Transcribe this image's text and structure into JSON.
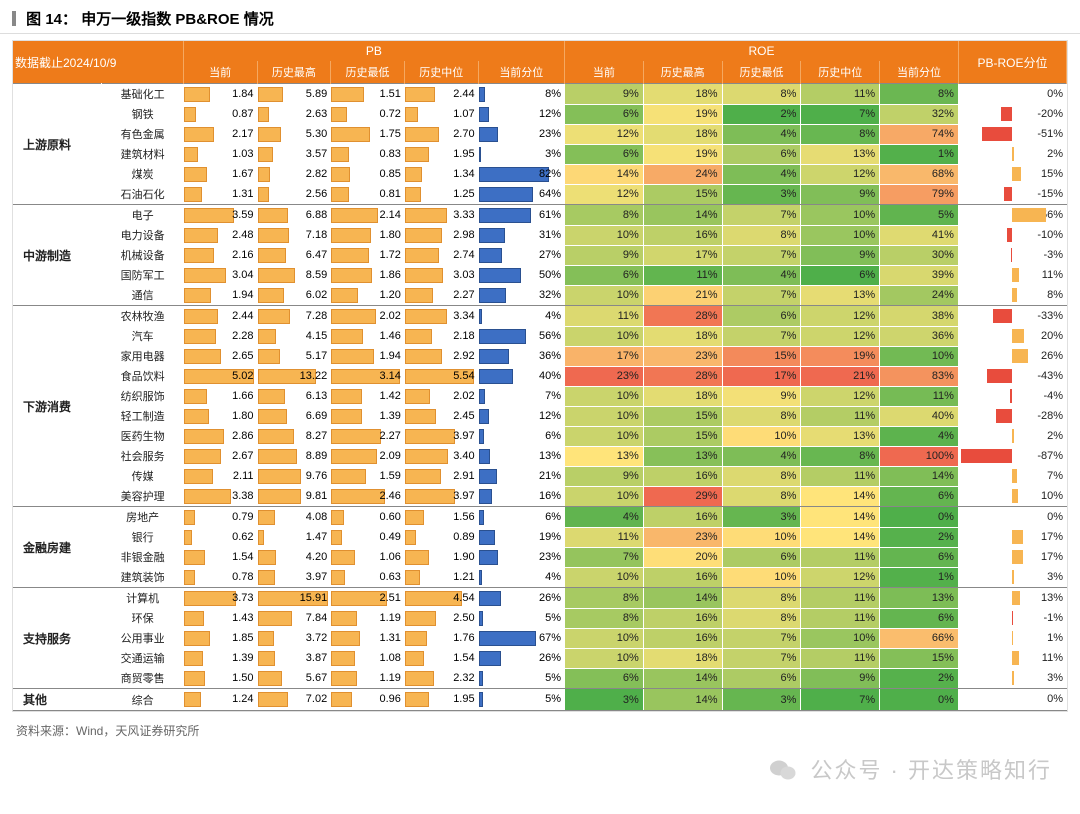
{
  "title_prefix": "图 14：",
  "title_main": "申万一级指数 PB&ROE 情况",
  "data_asof": "数据截止2024/10/9",
  "source": "资料来源：Wind，天风证券研究所",
  "watermark": "公众号 · 开达策略知行",
  "headers": {
    "pb_group": "PB",
    "roe_group": "ROE",
    "pbroe": "PB-ROE分位",
    "cols_pb": [
      "当前",
      "历史最高",
      "历史最低",
      "历史中位",
      "当前分位"
    ],
    "cols_roe": [
      "当前",
      "历史最高",
      "历史最低",
      "历史中位",
      "当前分位"
    ]
  },
  "colors": {
    "header_bg": "#ee7b1a",
    "orange_bar": "#f7b552",
    "blue_bar": "#3d6fc4",
    "neg_bar": "#e84c3d",
    "pos_bar": "#f7b552"
  },
  "scales": {
    "pb_current_max": 5.2,
    "pb_high_max": 16.5,
    "pb_low_max": 3.3,
    "pb_median_max": 5.8,
    "pb_pct_max": 100,
    "roe_current_max": 25,
    "roe_high_max": 30,
    "roe_low_max": 18,
    "roe_median_max": 22,
    "roe_pct_max": 100,
    "pbroe_abs_max": 90
  },
  "heat": {
    "roe_current": {
      "min": 3,
      "max": 23
    },
    "roe_high": {
      "min": 10,
      "max": 29
    },
    "roe_low": {
      "min": 2,
      "max": 17
    },
    "roe_median": {
      "min": 7,
      "max": 21
    },
    "roe_pct": {
      "min": 0,
      "max": 100
    }
  },
  "groups": [
    {
      "name": "上游原料",
      "rows": [
        {
          "ind": "基础化工",
          "pb": [
            1.84,
            5.89,
            1.51,
            2.44,
            8
          ],
          "roe": [
            9,
            18,
            8,
            11,
            8
          ],
          "pbroe": 0
        },
        {
          "ind": "钢铁",
          "pb": [
            0.87,
            2.63,
            0.72,
            1.07,
            12
          ],
          "roe": [
            6,
            19,
            2,
            7,
            32
          ],
          "pbroe": -20
        },
        {
          "ind": "有色金属",
          "pb": [
            2.17,
            5.3,
            1.75,
            2.7,
            23
          ],
          "roe": [
            12,
            18,
            4,
            8,
            74
          ],
          "pbroe": -51
        },
        {
          "ind": "建筑材料",
          "pb": [
            1.03,
            3.57,
            0.83,
            1.95,
            3
          ],
          "roe": [
            6,
            19,
            6,
            13,
            1
          ],
          "pbroe": 2
        },
        {
          "ind": "煤炭",
          "pb": [
            1.67,
            2.82,
            0.85,
            1.34,
            82
          ],
          "roe": [
            14,
            24,
            4,
            12,
            68
          ],
          "pbroe": 15
        },
        {
          "ind": "石油石化",
          "pb": [
            1.31,
            2.56,
            0.81,
            1.25,
            64
          ],
          "roe": [
            12,
            15,
            3,
            9,
            79
          ],
          "pbroe": -15
        }
      ]
    },
    {
      "name": "中游制造",
      "rows": [
        {
          "ind": "电子",
          "pb": [
            3.59,
            6.88,
            2.14,
            3.33,
            61
          ],
          "roe": [
            8,
            14,
            7,
            10,
            5
          ],
          "pbroe": 56
        },
        {
          "ind": "电力设备",
          "pb": [
            2.48,
            7.18,
            1.8,
            2.98,
            31
          ],
          "roe": [
            10,
            16,
            8,
            10,
            41
          ],
          "pbroe": -10
        },
        {
          "ind": "机械设备",
          "pb": [
            2.16,
            6.47,
            1.72,
            2.74,
            27
          ],
          "roe": [
            9,
            17,
            7,
            9,
            30
          ],
          "pbroe": -3
        },
        {
          "ind": "国防军工",
          "pb": [
            3.04,
            8.59,
            1.86,
            3.03,
            50
          ],
          "roe": [
            6,
            11,
            4,
            6,
            39
          ],
          "pbroe": 11
        },
        {
          "ind": "通信",
          "pb": [
            1.94,
            6.02,
            1.2,
            2.27,
            32
          ],
          "roe": [
            10,
            21,
            7,
            13,
            24
          ],
          "pbroe": 8
        }
      ]
    },
    {
      "name": "下游消费",
      "rows": [
        {
          "ind": "农林牧渔",
          "pb": [
            2.44,
            7.28,
            2.02,
            3.34,
            4
          ],
          "roe": [
            11,
            28,
            6,
            12,
            38
          ],
          "pbroe": -33
        },
        {
          "ind": "汽车",
          "pb": [
            2.28,
            4.15,
            1.46,
            2.18,
            56
          ],
          "roe": [
            10,
            18,
            7,
            12,
            36
          ],
          "pbroe": 20
        },
        {
          "ind": "家用电器",
          "pb": [
            2.65,
            5.17,
            1.94,
            2.92,
            36
          ],
          "roe": [
            17,
            23,
            15,
            19,
            10
          ],
          "pbroe": 26
        },
        {
          "ind": "食品饮料",
          "pb": [
            5.02,
            13.22,
            3.14,
            5.54,
            40
          ],
          "roe": [
            23,
            28,
            17,
            21,
            83
          ],
          "pbroe": -43
        },
        {
          "ind": "纺织服饰",
          "pb": [
            1.66,
            6.13,
            1.42,
            2.02,
            7
          ],
          "roe": [
            10,
            18,
            9,
            12,
            11
          ],
          "pbroe": -4
        },
        {
          "ind": "轻工制造",
          "pb": [
            1.8,
            6.69,
            1.39,
            2.45,
            12
          ],
          "roe": [
            10,
            15,
            8,
            11,
            40
          ],
          "pbroe": -28
        },
        {
          "ind": "医药生物",
          "pb": [
            2.86,
            8.27,
            2.27,
            3.97,
            6
          ],
          "roe": [
            10,
            15,
            10,
            13,
            4
          ],
          "pbroe": 2
        },
        {
          "ind": "社会服务",
          "pb": [
            2.67,
            8.89,
            2.09,
            3.4,
            13
          ],
          "roe": [
            13,
            13,
            4,
            8,
            100
          ],
          "pbroe": -87
        },
        {
          "ind": "传媒",
          "pb": [
            2.11,
            9.76,
            1.59,
            2.91,
            21
          ],
          "roe": [
            9,
            16,
            8,
            11,
            14
          ],
          "pbroe": 7
        },
        {
          "ind": "美容护理",
          "pb": [
            3.38,
            9.81,
            2.46,
            3.97,
            16
          ],
          "roe": [
            10,
            29,
            8,
            14,
            6
          ],
          "pbroe": 10
        }
      ]
    },
    {
      "name": "金融房建",
      "rows": [
        {
          "ind": "房地产",
          "pb": [
            0.79,
            4.08,
            0.6,
            1.56,
            6
          ],
          "roe": [
            4,
            16,
            3,
            14,
            0
          ],
          "pbroe": 0
        },
        {
          "ind": "银行",
          "pb": [
            0.62,
            1.47,
            0.49,
            0.89,
            19
          ],
          "roe": [
            11,
            23,
            10,
            14,
            2
          ],
          "pbroe": 17
        },
        {
          "ind": "非银金融",
          "pb": [
            1.54,
            4.2,
            1.06,
            1.9,
            23
          ],
          "roe": [
            7,
            20,
            6,
            11,
            6
          ],
          "pbroe": 17
        },
        {
          "ind": "建筑装饰",
          "pb": [
            0.78,
            3.97,
            0.63,
            1.21,
            4
          ],
          "roe": [
            10,
            16,
            10,
            12,
            1
          ],
          "pbroe": 3
        }
      ]
    },
    {
      "name": "支持服务",
      "rows": [
        {
          "ind": "计算机",
          "pb": [
            3.73,
            15.91,
            2.51,
            4.54,
            26
          ],
          "roe": [
            8,
            14,
            8,
            11,
            13
          ],
          "pbroe": 13
        },
        {
          "ind": "环保",
          "pb": [
            1.43,
            7.84,
            1.19,
            2.5,
            5
          ],
          "roe": [
            8,
            16,
            8,
            11,
            6
          ],
          "pbroe": -1
        },
        {
          "ind": "公用事业",
          "pb": [
            1.85,
            3.72,
            1.31,
            1.76,
            67
          ],
          "roe": [
            10,
            16,
            7,
            10,
            66
          ],
          "pbroe": 1
        },
        {
          "ind": "交通运输",
          "pb": [
            1.39,
            3.87,
            1.08,
            1.54,
            26
          ],
          "roe": [
            10,
            18,
            7,
            11,
            15
          ],
          "pbroe": 11
        },
        {
          "ind": "商贸零售",
          "pb": [
            1.5,
            5.67,
            1.19,
            2.32,
            5
          ],
          "roe": [
            6,
            14,
            6,
            9,
            2
          ],
          "pbroe": 3
        }
      ]
    },
    {
      "name": "其他",
      "rows": [
        {
          "ind": "综合",
          "pb": [
            1.24,
            7.02,
            0.96,
            1.95,
            5
          ],
          "roe": [
            3,
            14,
            3,
            7,
            0
          ],
          "pbroe": 0
        }
      ]
    }
  ]
}
